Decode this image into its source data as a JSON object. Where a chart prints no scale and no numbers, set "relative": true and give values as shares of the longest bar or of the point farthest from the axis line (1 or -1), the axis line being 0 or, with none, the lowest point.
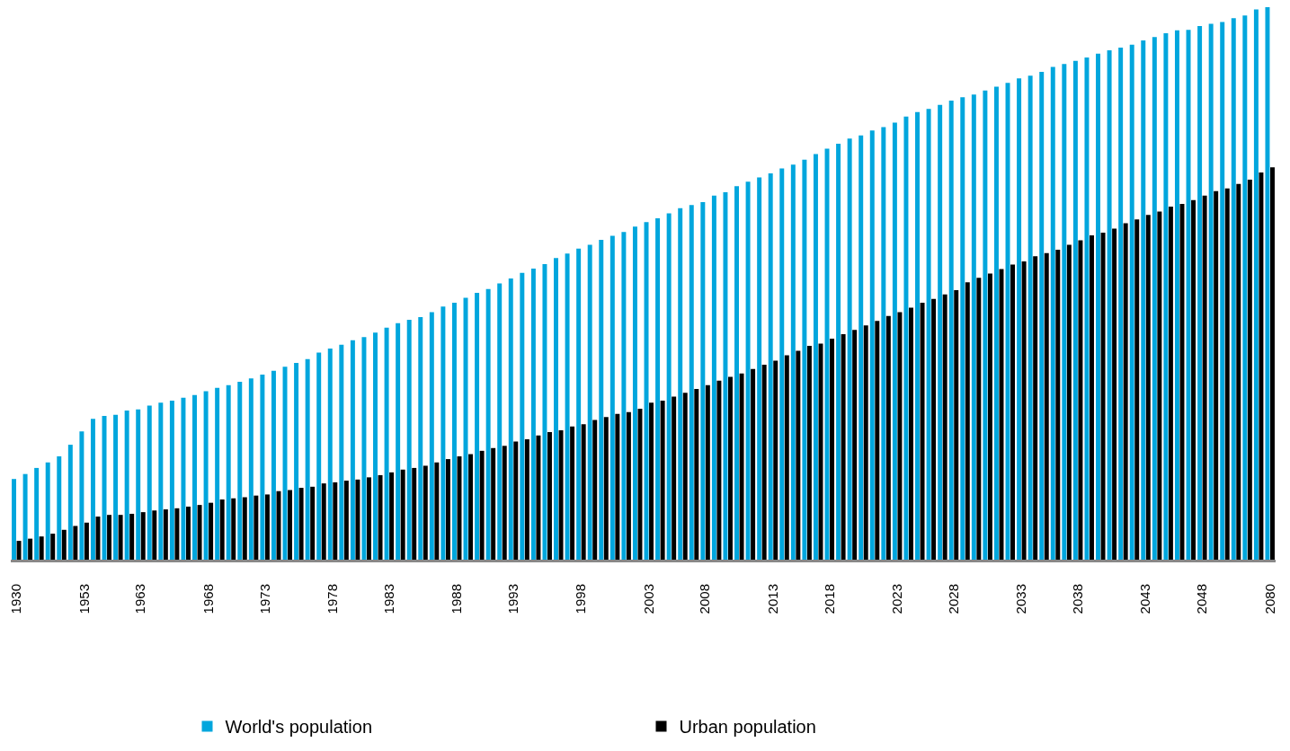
{
  "chart_data": {
    "type": "bar",
    "relative": true,
    "grid": false,
    "legend": "bottom",
    "categories": [
      "1930",
      null,
      null,
      null,
      null,
      null,
      "1953",
      null,
      null,
      null,
      null,
      "1963",
      null,
      null,
      null,
      null,
      null,
      "1968",
      null,
      null,
      null,
      null,
      "1973",
      null,
      null,
      null,
      null,
      null,
      "1978",
      null,
      null,
      null,
      null,
      "1983",
      null,
      null,
      null,
      null,
      null,
      "1988",
      null,
      null,
      null,
      null,
      "1993",
      null,
      null,
      null,
      null,
      null,
      "1998",
      null,
      null,
      null,
      null,
      null,
      "2003",
      null,
      null,
      null,
      null,
      "2008",
      null,
      null,
      null,
      null,
      null,
      "2013",
      null,
      null,
      null,
      null,
      "2018",
      null,
      null,
      null,
      null,
      null,
      "2023",
      null,
      null,
      null,
      null,
      "2028",
      null,
      null,
      null,
      null,
      null,
      "2033",
      null,
      null,
      null,
      null,
      "2038",
      null,
      null,
      null,
      null,
      null,
      "2043",
      null,
      null,
      null,
      null,
      "2048",
      null,
      null,
      null,
      null,
      null,
      "2080"
    ],
    "series": [
      {
        "name": "World's population",
        "color": "#00a6dd",
        "values": [
          0.146,
          0.155,
          0.166,
          0.176,
          0.187,
          0.208,
          0.232,
          0.255,
          0.26,
          0.262,
          0.27,
          0.272,
          0.279,
          0.284,
          0.288,
          0.293,
          0.298,
          0.305,
          0.311,
          0.316,
          0.322,
          0.328,
          0.335,
          0.342,
          0.349,
          0.356,
          0.363,
          0.375,
          0.382,
          0.389,
          0.397,
          0.403,
          0.411,
          0.42,
          0.428,
          0.434,
          0.439,
          0.448,
          0.458,
          0.465,
          0.474,
          0.483,
          0.49,
          0.5,
          0.509,
          0.519,
          0.527,
          0.535,
          0.546,
          0.554,
          0.563,
          0.57,
          0.579,
          0.586,
          0.593,
          0.603,
          0.611,
          0.618,
          0.627,
          0.636,
          0.642,
          0.647,
          0.659,
          0.665,
          0.676,
          0.684,
          0.692,
          0.699,
          0.708,
          0.715,
          0.724,
          0.734,
          0.744,
          0.753,
          0.762,
          0.768,
          0.777,
          0.783,
          0.791,
          0.802,
          0.81,
          0.816,
          0.823,
          0.831,
          0.837,
          0.842,
          0.849,
          0.856,
          0.863,
          0.871,
          0.876,
          0.883,
          0.892,
          0.897,
          0.903,
          0.909,
          0.916,
          0.922,
          0.927,
          0.932,
          0.94,
          0.946,
          0.953,
          0.958,
          0.959,
          0.966,
          0.97,
          0.973,
          0.98,
          0.985,
          0.996,
          1
        ]
      },
      {
        "name": "Urban population",
        "color": "#000000",
        "values": [
          0.034,
          0.038,
          0.042,
          0.047,
          0.054,
          0.061,
          0.067,
          0.078,
          0.081,
          0.081,
          0.083,
          0.086,
          0.089,
          0.091,
          0.093,
          0.096,
          0.099,
          0.103,
          0.109,
          0.111,
          0.113,
          0.116,
          0.118,
          0.124,
          0.126,
          0.13,
          0.132,
          0.138,
          0.14,
          0.143,
          0.145,
          0.149,
          0.153,
          0.158,
          0.163,
          0.166,
          0.17,
          0.176,
          0.182,
          0.187,
          0.191,
          0.197,
          0.202,
          0.206,
          0.214,
          0.218,
          0.225,
          0.231,
          0.234,
          0.241,
          0.245,
          0.253,
          0.258,
          0.264,
          0.267,
          0.273,
          0.284,
          0.288,
          0.295,
          0.302,
          0.309,
          0.316,
          0.324,
          0.331,
          0.337,
          0.345,
          0.353,
          0.36,
          0.37,
          0.378,
          0.387,
          0.391,
          0.4,
          0.408,
          0.416,
          0.424,
          0.432,
          0.441,
          0.448,
          0.456,
          0.465,
          0.472,
          0.48,
          0.488,
          0.502,
          0.51,
          0.518,
          0.526,
          0.534,
          0.54,
          0.549,
          0.555,
          0.561,
          0.57,
          0.578,
          0.587,
          0.592,
          0.599,
          0.609,
          0.616,
          0.624,
          0.63,
          0.639,
          0.644,
          0.651,
          0.659,
          0.667,
          0.672,
          0.68,
          0.688,
          0.701,
          0.71
        ]
      }
    ]
  }
}
